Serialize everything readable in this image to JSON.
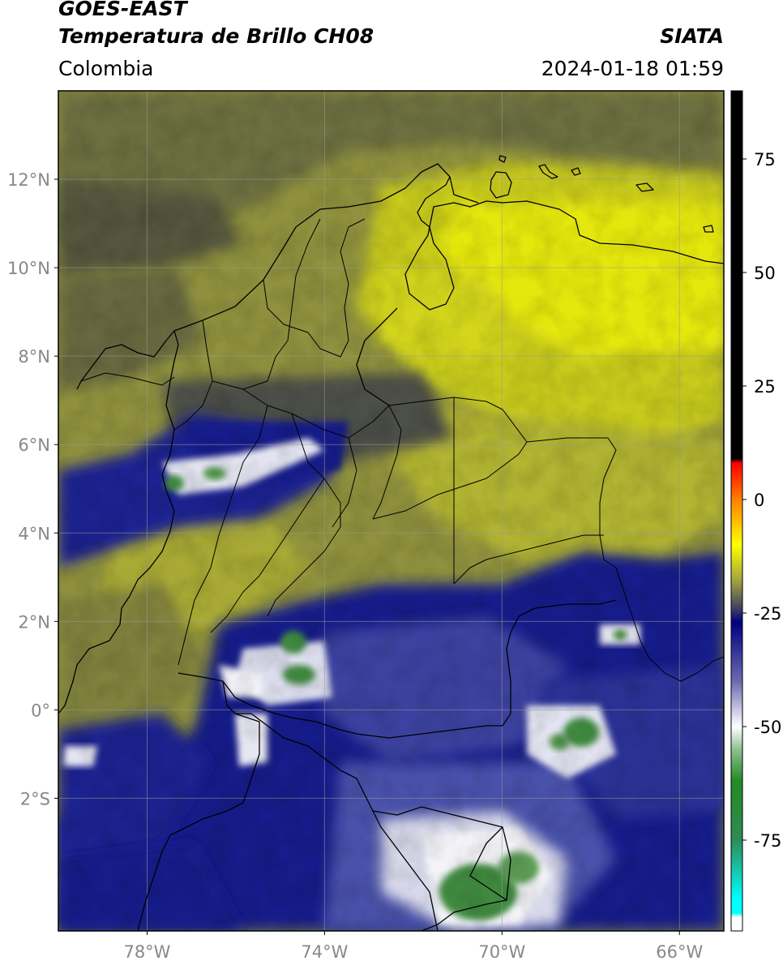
{
  "header": {
    "satellite": "GOES-EAST",
    "product": "Temperatura de Brillo CH08",
    "organization": "SIATA",
    "region": "Colombia",
    "datetime": "2024-01-18 01:59"
  },
  "map": {
    "lon_range": [
      -80,
      -65
    ],
    "lat_range": [
      -5,
      14
    ],
    "x_ticks": [
      {
        "lon": -78,
        "label": "78°W"
      },
      {
        "lon": -74,
        "label": "74°W"
      },
      {
        "lon": -70,
        "label": "70°W"
      },
      {
        "lon": -66,
        "label": "66°W"
      }
    ],
    "y_ticks": [
      {
        "lat": 12,
        "label": "12°N"
      },
      {
        "lat": 10,
        "label": "10°N"
      },
      {
        "lat": 8,
        "label": "8°N"
      },
      {
        "lat": 6,
        "label": "6°N"
      },
      {
        "lat": 4,
        "label": "4°N"
      },
      {
        "lat": 2,
        "label": "2°N"
      },
      {
        "lat": 0,
        "label": "0°"
      },
      {
        "lat": -2,
        "label": "2°S"
      }
    ],
    "gridlines": true
  },
  "colorbar": {
    "range": [
      -95,
      90
    ],
    "ticks": [
      {
        "value": 75,
        "label": "75"
      },
      {
        "value": 50,
        "label": "50"
      },
      {
        "value": 25,
        "label": "25"
      },
      {
        "value": 0,
        "label": "0"
      },
      {
        "value": -25,
        "label": "-25"
      },
      {
        "value": -50,
        "label": "-50"
      },
      {
        "value": -75,
        "label": "-75"
      }
    ],
    "stops": [
      {
        "value": 90,
        "color": "#000000"
      },
      {
        "value": 9,
        "color": "#000000"
      },
      {
        "value": 8,
        "color": "#ff0000"
      },
      {
        "value": 0,
        "color": "#ff8000"
      },
      {
        "value": -10,
        "color": "#ffff00"
      },
      {
        "value": -18,
        "color": "#a0a040"
      },
      {
        "value": -24,
        "color": "#404060"
      },
      {
        "value": -27,
        "color": "#000080"
      },
      {
        "value": -40,
        "color": "#6a6ab0"
      },
      {
        "value": -50,
        "color": "#ffffff"
      },
      {
        "value": -55,
        "color": "#90c090"
      },
      {
        "value": -62,
        "color": "#228b22"
      },
      {
        "value": -75,
        "color": "#2e8b57"
      },
      {
        "value": -88,
        "color": "#00ffff"
      },
      {
        "value": -91,
        "color": "#00ffff"
      },
      {
        "value": -92,
        "color": "#ffffff"
      },
      {
        "value": -95,
        "color": "#ffffff"
      }
    ]
  },
  "colors": {
    "deep_blue": "#141b8a",
    "mid_blue": "#4f56a8",
    "olive_dark": "#5c5e3e",
    "olive": "#8f913e",
    "yellow_olive": "#b8b92a",
    "bright_yellow": "#e8ea12",
    "cloud_white": "#f2f2f7",
    "cloud_green": "#3f8a3f"
  }
}
